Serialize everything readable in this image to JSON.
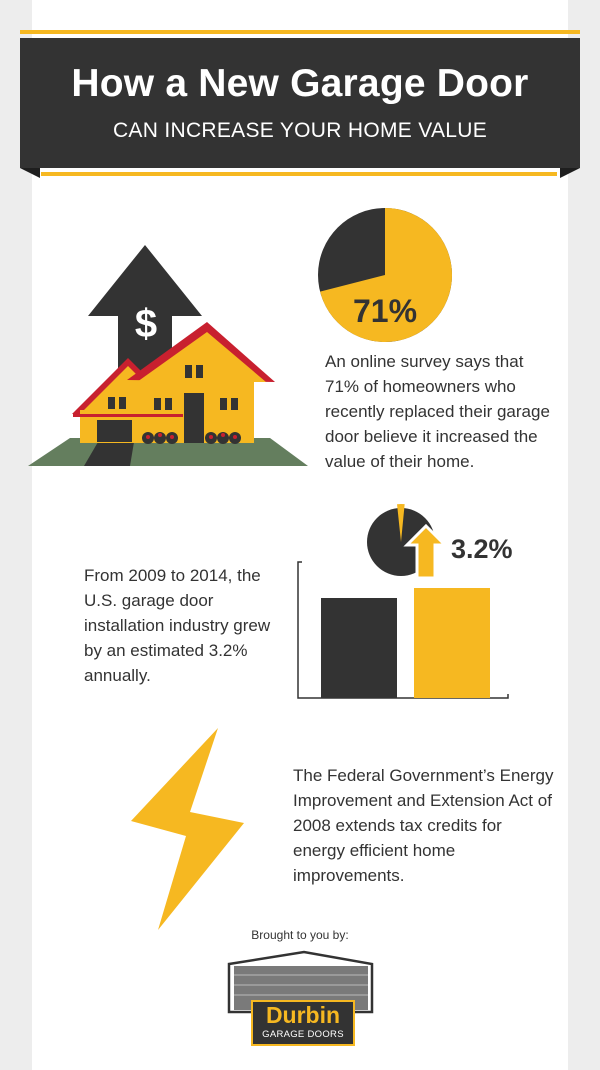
{
  "header": {
    "title": "How a New Garage Door",
    "subtitle": "CAN INCREASE YOUR HOME VALUE"
  },
  "section1": {
    "dollar_symbol": "$",
    "pie_percent": 71,
    "pie_label": "71%",
    "text": "An online survey says that 71% of homeowners who recently replaced their garage door believe it increased the value of their home."
  },
  "section2": {
    "text": "From 2009 to 2014, the U.S. garage door installation industry grew by an estimated 3.2% annually.",
    "growth_label": "3.2%",
    "growth_percent": 3.2
  },
  "section3": {
    "text": "The Federal Government’s Energy Improvement and Extension Act of 2008 extends tax credits for energy efficient home improvements."
  },
  "footer": {
    "brought_by": "Brought to you by:",
    "logo_name": "Durbin",
    "logo_sub": "GARAGE DOORS"
  },
  "colors": {
    "accent": "#f6b821",
    "dark": "#333333",
    "roof": "#c8202f",
    "lawn": "#647e5e"
  }
}
